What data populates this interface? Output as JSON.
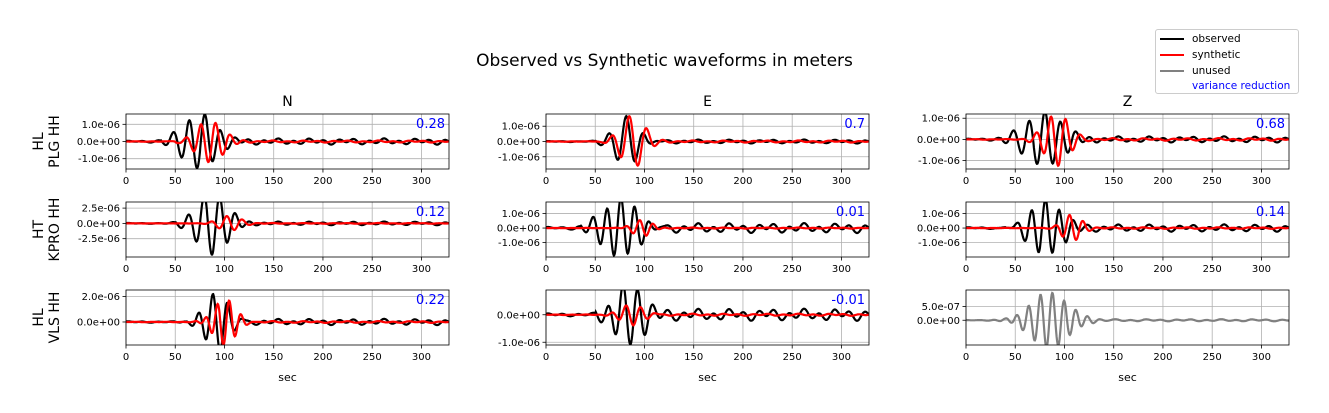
{
  "figure": {
    "title": "Observed vs Synthetic waveforms in meters"
  },
  "legend": {
    "items": [
      {
        "label": "observed",
        "color": "#000000",
        "swatch": "line"
      },
      {
        "label": "synthetic",
        "color": "#ff0000",
        "swatch": "line"
      },
      {
        "label": "unused",
        "color": "#808080",
        "swatch": "line"
      },
      {
        "label": "variance reduction",
        "color": "#0000ff",
        "swatch": "text"
      }
    ]
  },
  "colors": {
    "observed": "#000000",
    "synthetic": "#ff0000",
    "unused": "#808080",
    "variance_reduction": "#0000ff",
    "grid": "#b0b0b0"
  },
  "chart_data": {
    "type": "line",
    "title": "Observed vs Synthetic waveforms in meters",
    "column_titles": [
      "N",
      "E",
      "Z"
    ],
    "row_labels": [
      {
        "network": "HL",
        "station": "PLG HH"
      },
      {
        "network": "HT",
        "station": "KPRO HH"
      },
      {
        "network": "HL",
        "station": "VLS HH"
      }
    ],
    "xlabel": "sec",
    "xlim": [
      0,
      328
    ],
    "xticks": [
      0,
      50,
      100,
      150,
      200,
      250,
      300
    ],
    "grid": true,
    "legend_position": "top-right",
    "panels": [
      {
        "row": 0,
        "col": 0,
        "variance_reduction": "0.28",
        "ylim": [
          -1.6e-06,
          1.6e-06
        ],
        "yticks": [
          {
            "v": 1e-06,
            "label": "1.0e-06"
          },
          {
            "v": 0,
            "label": "0.0e+00"
          },
          {
            "v": -1e-06,
            "label": "-1.0e-06"
          }
        ],
        "observed": {
          "t0": 45,
          "t1": 105,
          "peak": 1.5e-06,
          "period": 16,
          "tail": 0.12
        },
        "synthetic": {
          "t0": 60,
          "t1": 110,
          "peak": 1.2e-06,
          "period": 15,
          "tail": 0.05
        }
      },
      {
        "row": 0,
        "col": 1,
        "variance_reduction": "0.7",
        "ylim": [
          -1.8e-06,
          1.8e-06
        ],
        "yticks": [
          {
            "v": 1e-06,
            "label": "1.0e-06"
          },
          {
            "v": 0,
            "label": "0.0e+00"
          },
          {
            "v": -1e-06,
            "label": "-1.0e-06"
          }
        ],
        "observed": {
          "t0": 60,
          "t1": 105,
          "peak": 1.6e-06,
          "period": 18,
          "tail": 0.08
        },
        "synthetic": {
          "t0": 65,
          "t1": 110,
          "peak": 1.7e-06,
          "period": 18,
          "tail": 0.04
        }
      },
      {
        "row": 0,
        "col": 2,
        "variance_reduction": "0.68",
        "ylim": [
          -1.4e-06,
          1.2e-06
        ],
        "yticks": [
          {
            "v": 1e-06,
            "label": "1.0e-06"
          },
          {
            "v": 0,
            "label": "0.0e+00"
          },
          {
            "v": -1e-06,
            "label": "-1.0e-06"
          }
        ],
        "observed": {
          "t0": 45,
          "t1": 115,
          "peak": 1.2e-06,
          "period": 16,
          "tail": 0.12
        },
        "synthetic": {
          "t0": 70,
          "t1": 115,
          "peak": 1.2e-06,
          "period": 15,
          "tail": 0.05
        }
      },
      {
        "row": 1,
        "col": 0,
        "variance_reduction": "0.12",
        "ylim": [
          -5.5e-06,
          3.5e-06
        ],
        "yticks": [
          {
            "v": 2.5e-06,
            "label": "2.5e-06"
          },
          {
            "v": 0,
            "label": "0.0e+00"
          },
          {
            "v": -2.5e-06,
            "label": "-2.5e-06"
          }
        ],
        "observed": {
          "t0": 60,
          "t1": 115,
          "peak": 5e-06,
          "period": 16,
          "tail": 0.06
        },
        "synthetic": {
          "t0": 85,
          "t1": 125,
          "peak": 1.2e-06,
          "period": 16,
          "tail": 0.05
        }
      },
      {
        "row": 1,
        "col": 1,
        "variance_reduction": "0.01",
        "ylim": [
          -2e-06,
          1.8e-06
        ],
        "yticks": [
          {
            "v": 1e-06,
            "label": "1.0e-06"
          },
          {
            "v": 0,
            "label": "0.0e+00"
          },
          {
            "v": -1e-06,
            "label": "-1.0e-06"
          }
        ],
        "observed": {
          "t0": 45,
          "t1": 110,
          "peak": 1.9e-06,
          "period": 14,
          "tail": 0.18
        },
        "synthetic": {
          "t0": 80,
          "t1": 115,
          "peak": 6e-07,
          "period": 14,
          "tail": 0.06
        }
      },
      {
        "row": 1,
        "col": 2,
        "variance_reduction": "0.14",
        "ylim": [
          -2e-06,
          1.8e-06
        ],
        "yticks": [
          {
            "v": 1e-06,
            "label": "1.0e-06"
          },
          {
            "v": 0,
            "label": "0.0e+00"
          },
          {
            "v": -1e-06,
            "label": "-1.0e-06"
          }
        ],
        "observed": {
          "t0": 50,
          "t1": 110,
          "peak": 1.8e-06,
          "period": 14,
          "tail": 0.14
        },
        "synthetic": {
          "t0": 90,
          "t1": 125,
          "peak": 9e-07,
          "period": 14,
          "tail": 0.06
        }
      },
      {
        "row": 2,
        "col": 0,
        "variance_reduction": "0.22",
        "ylim": [
          -1.8e-06,
          2.5e-06
        ],
        "yticks": [
          {
            "v": 2e-06,
            "label": "2.0e-06"
          },
          {
            "v": 0,
            "label": "0.0e+00"
          }
        ],
        "observed": {
          "t0": 70,
          "t1": 115,
          "peak": 2.4e-06,
          "period": 15,
          "tail": 0.1
        },
        "synthetic": {
          "t0": 80,
          "t1": 120,
          "peak": 1.8e-06,
          "period": 12,
          "tail": 0.04
        }
      },
      {
        "row": 2,
        "col": 1,
        "variance_reduction": "-0.01",
        "ylim": [
          -1.1e-06,
          9e-07
        ],
        "yticks": [
          {
            "v": 0,
            "label": "0.0e+00"
          },
          {
            "v": -1e-06,
            "label": "-1.0e-06"
          }
        ],
        "observed": {
          "t0": 60,
          "t1": 110,
          "peak": 1e-06,
          "period": 15,
          "tail": 0.22
        },
        "synthetic": {
          "t0": 65,
          "t1": 110,
          "peak": 4e-07,
          "period": 15,
          "tail": 0.1
        }
      },
      {
        "row": 2,
        "col": 2,
        "variance_reduction": "",
        "ylim": [
          -9e-07,
          1.1e-06
        ],
        "yticks": [
          {
            "v": 5e-07,
            "label": "5.0e-07"
          },
          {
            "v": 0,
            "label": "0.0e+00"
          }
        ],
        "unused": {
          "t0": 50,
          "t1": 120,
          "peak": 1e-06,
          "period": 12,
          "tail": 0.04
        }
      }
    ]
  }
}
